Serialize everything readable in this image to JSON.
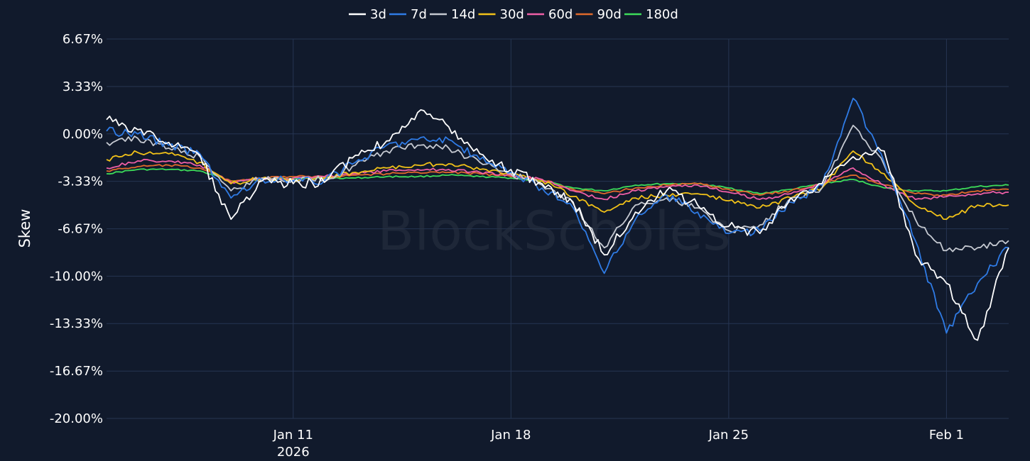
{
  "watermark": "BlockScholes",
  "chart_data": {
    "type": "line",
    "title": "",
    "ylabel": "Skew",
    "xlabel": "",
    "ylim": [
      -20,
      6.67
    ],
    "y_ticks": [
      {
        "value": 6.67,
        "label": "6.67%"
      },
      {
        "value": 3.33,
        "label": "3.33%"
      },
      {
        "value": 0.0,
        "label": "0.00%"
      },
      {
        "value": -3.33,
        "label": "-3.33%"
      },
      {
        "value": -6.67,
        "label": "-6.67%"
      },
      {
        "value": -10.0,
        "label": "-10.00%"
      },
      {
        "value": -13.33,
        "label": "-13.33%"
      },
      {
        "value": -16.67,
        "label": "-16.67%"
      },
      {
        "value": -20.0,
        "label": "-20.00%"
      }
    ],
    "x_range": [
      "2026-01-05",
      "2026-02-03"
    ],
    "x_ticks": [
      {
        "date": "2026-01-11",
        "label": "Jan 11",
        "sublabel": "2026"
      },
      {
        "date": "2026-01-18",
        "label": "Jan 18",
        "sublabel": ""
      },
      {
        "date": "2026-01-25",
        "label": "Jan 25",
        "sublabel": ""
      },
      {
        "date": "2026-02-01",
        "label": "Feb 1",
        "sublabel": ""
      }
    ],
    "grid": true,
    "legend_position": "top-center",
    "x": [
      "2026-01-05",
      "2026-01-06",
      "2026-01-07",
      "2026-01-08",
      "2026-01-09",
      "2026-01-10",
      "2026-01-11",
      "2026-01-12",
      "2026-01-13",
      "2026-01-14",
      "2026-01-15",
      "2026-01-16",
      "2026-01-17",
      "2026-01-18",
      "2026-01-19",
      "2026-01-20",
      "2026-01-21",
      "2026-01-22",
      "2026-01-23",
      "2026-01-24",
      "2026-01-25",
      "2026-01-26",
      "2026-01-27",
      "2026-01-28",
      "2026-01-29",
      "2026-01-30",
      "2026-01-31",
      "2026-02-01",
      "2026-02-02",
      "2026-02-03"
    ],
    "series": [
      {
        "name": "3d",
        "color": "#ffffff",
        "values": [
          1.0,
          0.3,
          -0.6,
          -1.5,
          -6.0,
          -3.3,
          -3.5,
          -3.4,
          -1.5,
          -0.5,
          1.5,
          0.5,
          -1.4,
          -2.5,
          -3.5,
          -4.8,
          -8.5,
          -5.5,
          -4.0,
          -5.0,
          -6.5,
          -7.0,
          -4.5,
          -3.5,
          -1.6,
          -1.2,
          -8.5,
          -10.5,
          -14.5,
          -8.0
        ]
      },
      {
        "name": "7d",
        "color": "#2f7be5",
        "values": [
          0.2,
          0.0,
          -0.8,
          -1.4,
          -4.5,
          -3.2,
          -3.3,
          -3.3,
          -2.0,
          -0.8,
          -0.4,
          -0.4,
          -1.8,
          -2.7,
          -3.8,
          -5.2,
          -9.8,
          -6.0,
          -4.3,
          -5.5,
          -7.0,
          -6.8,
          -4.8,
          -3.6,
          2.5,
          -2.0,
          -7.5,
          -14.0,
          -10.5,
          -8.0
        ]
      },
      {
        "name": "14d",
        "color": "#c5c9d1",
        "values": [
          -0.6,
          -0.3,
          -1.0,
          -1.6,
          -4.0,
          -3.1,
          -3.2,
          -3.2,
          -2.2,
          -1.2,
          -0.8,
          -1.0,
          -2.0,
          -2.8,
          -3.6,
          -4.9,
          -8.0,
          -5.0,
          -4.5,
          -5.2,
          -6.8,
          -6.4,
          -4.5,
          -3.8,
          0.6,
          -2.2,
          -6.0,
          -8.2,
          -8.0,
          -7.5
        ]
      },
      {
        "name": "30d",
        "color": "#f2c218",
        "values": [
          -1.8,
          -1.3,
          -1.4,
          -2.0,
          -3.5,
          -3.1,
          -3.2,
          -3.1,
          -2.7,
          -2.4,
          -2.2,
          -2.1,
          -2.5,
          -2.8,
          -3.3,
          -4.4,
          -5.5,
          -4.5,
          -4.3,
          -4.2,
          -4.7,
          -5.2,
          -4.5,
          -3.8,
          -1.2,
          -2.8,
          -5.0,
          -6.0,
          -5.0,
          -5.0
        ]
      },
      {
        "name": "60d",
        "color": "#ef5fa7",
        "values": [
          -2.4,
          -1.9,
          -1.9,
          -2.2,
          -3.4,
          -3.1,
          -3.1,
          -3.0,
          -2.8,
          -2.6,
          -2.5,
          -2.5,
          -2.7,
          -2.9,
          -3.2,
          -4.0,
          -4.6,
          -4.0,
          -3.7,
          -3.6,
          -4.1,
          -4.6,
          -4.2,
          -3.5,
          -2.4,
          -3.6,
          -4.6,
          -4.4,
          -4.2,
          -4.1
        ]
      },
      {
        "name": "90d",
        "color": "#e0692b",
        "values": [
          -2.6,
          -2.3,
          -2.2,
          -2.4,
          -3.3,
          -3.1,
          -3.0,
          -3.0,
          -2.9,
          -2.8,
          -2.7,
          -2.7,
          -2.8,
          -3.0,
          -3.2,
          -3.9,
          -4.2,
          -3.8,
          -3.6,
          -3.5,
          -3.9,
          -4.3,
          -4.0,
          -3.5,
          -2.9,
          -3.6,
          -4.2,
          -4.3,
          -4.0,
          -3.9
        ]
      },
      {
        "name": "180d",
        "color": "#3ddc5a",
        "values": [
          -2.8,
          -2.5,
          -2.5,
          -2.6,
          -3.3,
          -3.2,
          -3.1,
          -3.1,
          -3.1,
          -3.0,
          -3.0,
          -2.9,
          -3.0,
          -3.1,
          -3.3,
          -3.8,
          -4.0,
          -3.6,
          -3.5,
          -3.5,
          -3.8,
          -4.2,
          -3.9,
          -3.5,
          -3.2,
          -3.8,
          -4.0,
          -4.0,
          -3.7,
          -3.6
        ]
      }
    ]
  }
}
